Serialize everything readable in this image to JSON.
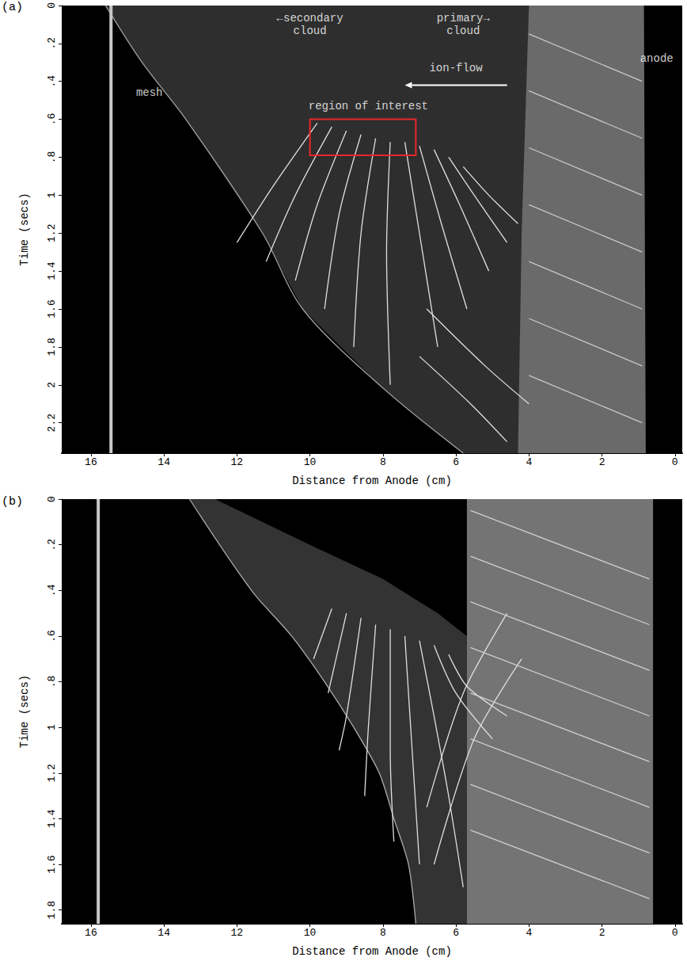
{
  "chart_data": [
    {
      "type": "line",
      "panel": "(a)",
      "x_label": "Distance from Anode (cm)",
      "y_label": "Time (secs)",
      "xlim": [
        16.8,
        -0.2
      ],
      "xticks": [
        16,
        14,
        12,
        10,
        8,
        6,
        4,
        2,
        0
      ],
      "ylim": [
        2.36,
        0
      ],
      "yticks": [
        0,
        {
          "value": 0.2,
          "label": ".2"
        },
        {
          "value": 0.4,
          "label": ".4"
        },
        {
          "value": 0.6,
          "label": ".6"
        },
        {
          "value": 0.8,
          "label": ".8"
        },
        1,
        1.2,
        1.4,
        1.6,
        1.8,
        2,
        2.2
      ],
      "grid": false,
      "series": [
        {
          "type": "area",
          "color": "#2e2e2e",
          "x": [
            15.6,
            14.6,
            13.4,
            11.3,
            10.2,
            8.1,
            5.8,
            4.2,
            4.0
          ],
          "values": [
            0,
            0.3,
            0.6,
            1.2,
            1.6,
            2.0,
            2.36,
            2.36,
            0
          ]
        },
        {
          "type": "area",
          "color": "#6a6a6a",
          "x": [
            4.0,
            4.2,
            4.3,
            0.8,
            0.85
          ],
          "values": [
            0,
            1.2,
            2.36,
            2.36,
            0
          ]
        },
        {
          "type": "line",
          "color": "#a0a0a0",
          "x": [
            15.6,
            14.6,
            13.4,
            11.3,
            10.2,
            8.1,
            5.8
          ],
          "values": [
            0,
            0.3,
            0.6,
            1.2,
            1.6,
            2.0,
            2.36
          ]
        },
        {
          "type": "line",
          "color": "#c8c8c8",
          "line_style": "thick",
          "x": [
            15.45,
            15.45
          ],
          "values": [
            0,
            2.36
          ]
        },
        {
          "type": "line",
          "color": "#e0e0e0",
          "x": [
            9.8,
            11.0,
            12.0
          ],
          "values": [
            0.62,
            0.95,
            1.25
          ]
        },
        {
          "type": "line",
          "color": "#e0e0e0",
          "x": [
            9.4,
            10.4,
            11.2
          ],
          "values": [
            0.64,
            1.0,
            1.35
          ]
        },
        {
          "type": "line",
          "color": "#e0e0e0",
          "x": [
            9.0,
            9.8,
            10.4
          ],
          "values": [
            0.66,
            1.05,
            1.45
          ]
        },
        {
          "type": "line",
          "color": "#e0e0e0",
          "x": [
            8.6,
            9.2,
            9.6
          ],
          "values": [
            0.68,
            1.1,
            1.6
          ]
        },
        {
          "type": "line",
          "color": "#e0e0e0",
          "x": [
            8.2,
            8.6,
            8.8
          ],
          "values": [
            0.7,
            1.2,
            1.8
          ]
        },
        {
          "type": "line",
          "color": "#e0e0e0",
          "x": [
            7.8,
            7.9,
            7.8
          ],
          "values": [
            0.72,
            1.3,
            2.0
          ]
        },
        {
          "type": "line",
          "color": "#e0e0e0",
          "x": [
            7.4,
            7.0,
            6.5
          ],
          "values": [
            0.72,
            1.2,
            1.8
          ]
        },
        {
          "type": "line",
          "color": "#e0e0e0",
          "x": [
            7.0,
            6.4,
            5.7
          ],
          "values": [
            0.74,
            1.15,
            1.6
          ]
        },
        {
          "type": "line",
          "color": "#e0e0e0",
          "x": [
            6.6,
            5.9,
            5.1
          ],
          "values": [
            0.76,
            1.05,
            1.4
          ]
        },
        {
          "type": "line",
          "color": "#e0e0e0",
          "x": [
            6.2,
            5.5,
            4.6
          ],
          "values": [
            0.8,
            1.0,
            1.25
          ]
        },
        {
          "type": "line",
          "color": "#e0e0e0",
          "x": [
            5.8,
            5.1,
            4.3
          ],
          "values": [
            0.85,
            1.0,
            1.15
          ]
        },
        {
          "type": "line",
          "color": "#e0e0e0",
          "x": [
            6.8,
            5.2,
            4.0
          ],
          "values": [
            1.6,
            1.9,
            2.1
          ]
        },
        {
          "type": "line",
          "color": "#e0e0e0",
          "x": [
            7.0,
            5.6,
            4.6
          ],
          "values": [
            1.85,
            2.1,
            2.3
          ]
        },
        {
          "type": "line",
          "color": "#c8c8c8",
          "x": [
            4.0,
            0.9
          ],
          "values": [
            0.15,
            0.4
          ]
        },
        {
          "type": "line",
          "color": "#c8c8c8",
          "x": [
            4.0,
            0.9
          ],
          "values": [
            0.45,
            0.7
          ]
        },
        {
          "type": "line",
          "color": "#c8c8c8",
          "x": [
            4.0,
            0.9
          ],
          "values": [
            0.75,
            1.0
          ]
        },
        {
          "type": "line",
          "color": "#c8c8c8",
          "x": [
            4.0,
            0.9
          ],
          "values": [
            1.05,
            1.3
          ]
        },
        {
          "type": "line",
          "color": "#c8c8c8",
          "x": [
            4.0,
            0.9
          ],
          "values": [
            1.35,
            1.6
          ]
        },
        {
          "type": "line",
          "color": "#c8c8c8",
          "x": [
            4.0,
            0.9
          ],
          "values": [
            1.65,
            1.9
          ]
        },
        {
          "type": "line",
          "color": "#c8c8c8",
          "x": [
            4.0,
            0.9
          ],
          "values": [
            1.95,
            2.2
          ]
        }
      ],
      "annotations": [
        {
          "text": "mesh",
          "x": 14.4,
          "y": 0.46,
          "color": "#ffffff"
        },
        {
          "text": "←secondary\ncloud",
          "x": 10.0,
          "y": 0.1,
          "color": "#ffffff"
        },
        {
          "text": "primary→\ncloud",
          "x": 5.8,
          "y": 0.1,
          "color": "#ffffff"
        },
        {
          "text": "ion-flow",
          "x": 6.0,
          "y": 0.33,
          "color": "#ffffff"
        },
        {
          "text": "anode",
          "x": 0.5,
          "y": 0.28,
          "color": "#ffffff"
        },
        {
          "text": "region of interest",
          "x": 8.4,
          "y": 0.53,
          "color": "#ffffff"
        }
      ],
      "arrows": [
        {
          "x": [
            4.6,
            7.4
          ],
          "y": [
            0.42,
            0.42
          ],
          "color": "#ffffff"
        }
      ],
      "boxes": [
        {
          "x": [
            10,
            7.1
          ],
          "y": [
            0.6,
            0.79
          ],
          "color": "#e8262b"
        }
      ]
    },
    {
      "type": "line",
      "panel": "(b)",
      "x_label": "Distance from Anode (cm)",
      "y_label": "Time (secs)",
      "xlim": [
        16.8,
        -0.2
      ],
      "xticks": [
        16,
        14,
        12,
        10,
        8,
        6,
        4,
        2,
        0
      ],
      "ylim": [
        1.86,
        0
      ],
      "yticks": [
        0,
        {
          "value": 0.2,
          "label": ".2"
        },
        {
          "value": 0.4,
          "label": ".4"
        },
        {
          "value": 0.6,
          "label": ".6"
        },
        {
          "value": 0.8,
          "label": ".8"
        },
        1,
        1.2,
        1.4,
        1.6,
        1.8
      ],
      "grid": false,
      "series": [
        {
          "type": "area",
          "color": "#333333",
          "x": [
            13.3,
            11.6,
            10.5,
            9.6,
            8.8,
            8.1,
            7.7,
            7.3,
            7.1,
            5.7,
            5.7,
            6.5,
            8.0,
            10.0,
            12.6
          ],
          "values": [
            0,
            0.4,
            0.6,
            0.8,
            1.0,
            1.2,
            1.4,
            1.6,
            1.86,
            1.86,
            0.6,
            0.5,
            0.35,
            0.2,
            0
          ]
        },
        {
          "type": "area",
          "color": "#747474",
          "x": [
            5.7,
            5.7,
            0.6,
            0.6
          ],
          "values": [
            0,
            1.86,
            1.86,
            0
          ]
        },
        {
          "type": "line",
          "color": "#aaaaaa",
          "x": [
            13.3,
            11.6,
            10.5,
            9.6,
            8.8,
            8.1,
            7.7,
            7.3,
            7.1
          ],
          "values": [
            0,
            0.4,
            0.6,
            0.8,
            1.0,
            1.2,
            1.4,
            1.6,
            1.86
          ]
        },
        {
          "type": "line",
          "color": "#c8c8c8",
          "line_style": "thick",
          "x": [
            15.8,
            15.8
          ],
          "values": [
            0,
            1.86
          ]
        },
        {
          "type": "line",
          "color": "#e0e0e0",
          "x": [
            9.4,
            9.9
          ],
          "values": [
            0.48,
            0.7
          ]
        },
        {
          "type": "line",
          "color": "#e0e0e0",
          "x": [
            9.0,
            9.5
          ],
          "values": [
            0.5,
            0.85
          ]
        },
        {
          "type": "line",
          "color": "#e0e0e0",
          "x": [
            8.6,
            9.0,
            9.2
          ],
          "values": [
            0.52,
            0.95,
            1.1
          ]
        },
        {
          "type": "line",
          "color": "#e0e0e0",
          "x": [
            8.2,
            8.4,
            8.5
          ],
          "values": [
            0.55,
            1.0,
            1.3
          ]
        },
        {
          "type": "line",
          "color": "#e0e0e0",
          "x": [
            7.8,
            7.8,
            7.7
          ],
          "values": [
            0.57,
            1.1,
            1.5
          ]
        },
        {
          "type": "line",
          "color": "#e0e0e0",
          "x": [
            7.4,
            7.2,
            7.0
          ],
          "values": [
            0.6,
            1.1,
            1.6
          ]
        },
        {
          "type": "line",
          "color": "#e0e0e0",
          "x": [
            7.0,
            6.6,
            6.2,
            5.8
          ],
          "values": [
            0.62,
            0.95,
            1.3,
            1.7
          ]
        },
        {
          "type": "line",
          "color": "#e0e0e0",
          "x": [
            6.6,
            6.0,
            5.0
          ],
          "values": [
            0.64,
            0.85,
            1.05
          ]
        },
        {
          "type": "line",
          "color": "#e0e0e0",
          "x": [
            6.2,
            5.7,
            4.6
          ],
          "values": [
            0.68,
            0.82,
            0.95
          ]
        },
        {
          "type": "line",
          "color": "#e0e0e0",
          "x": [
            4.6,
            5.8,
            6.8
          ],
          "values": [
            0.5,
            0.85,
            1.35
          ]
        },
        {
          "type": "line",
          "color": "#e0e0e0",
          "x": [
            4.2,
            5.5,
            6.6
          ],
          "values": [
            0.7,
            1.05,
            1.6
          ]
        },
        {
          "type": "line",
          "color": "#cfcfcf",
          "x": [
            5.6,
            0.7
          ],
          "values": [
            0.05,
            0.35
          ]
        },
        {
          "type": "line",
          "color": "#cfcfcf",
          "x": [
            5.6,
            0.7
          ],
          "values": [
            0.25,
            0.55
          ]
        },
        {
          "type": "line",
          "color": "#cfcfcf",
          "x": [
            5.6,
            0.7
          ],
          "values": [
            0.45,
            0.75
          ]
        },
        {
          "type": "line",
          "color": "#cfcfcf",
          "x": [
            5.6,
            0.7
          ],
          "values": [
            0.65,
            0.95
          ]
        },
        {
          "type": "line",
          "color": "#cfcfcf",
          "x": [
            5.6,
            0.7
          ],
          "values": [
            0.85,
            1.15
          ]
        },
        {
          "type": "line",
          "color": "#cfcfcf",
          "x": [
            5.6,
            0.7
          ],
          "values": [
            1.05,
            1.35
          ]
        },
        {
          "type": "line",
          "color": "#cfcfcf",
          "x": [
            5.6,
            0.7
          ],
          "values": [
            1.25,
            1.55
          ]
        },
        {
          "type": "line",
          "color": "#cfcfcf",
          "x": [
            5.6,
            0.7
          ],
          "values": [
            1.45,
            1.75
          ]
        }
      ]
    }
  ]
}
